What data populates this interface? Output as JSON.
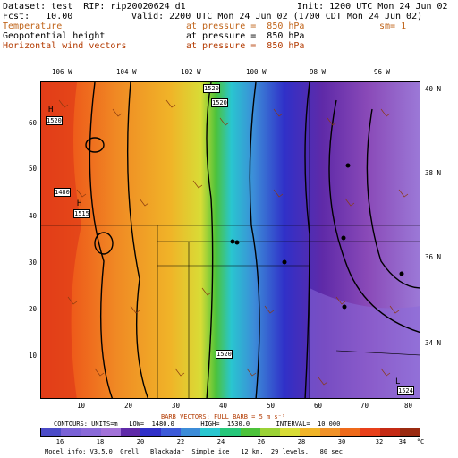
{
  "header": {
    "dataset_line": "Dataset: test  RIP: rip20020624 d1",
    "init_line": "Init: 1200 UTC Mon 24 Jun 02",
    "fcst_line": "Fcst:   10.00",
    "valid_line": "Valid: 2200 UTC Mon 24 Jun 02 (1700 CDT Mon 24 Jun 02)",
    "fields": [
      {
        "name": "Temperature",
        "level": "at pressure =  850 hPa",
        "extra": "sm= 1"
      },
      {
        "name": "Geopotential height",
        "level": "at pressure =  850 hPa",
        "extra": ""
      },
      {
        "name": "Horizontal wind vectors",
        "level": "at pressure =  850 hPa",
        "extra": ""
      }
    ]
  },
  "map": {
    "top_lon_labels": [
      "106 W",
      "104 W",
      "102 W",
      "100 W",
      "98 W",
      "96 W"
    ],
    "right_lat_labels": [
      "40 N",
      "38 N",
      "36 N",
      "34 N"
    ],
    "left_ticks": [
      "60",
      "50",
      "40",
      "30",
      "20",
      "10"
    ],
    "bottom_ticks": [
      "10",
      "20",
      "30",
      "40",
      "50",
      "60",
      "70",
      "80"
    ],
    "contour_labels": [
      "1520",
      "1520",
      "1520",
      "1480",
      "1515",
      "1520",
      "1524"
    ],
    "high_marker": "H",
    "low_marker": "L"
  },
  "footer": {
    "barb_line": "BARB VECTORS: FULL BARB = 5 m s⁻¹",
    "contours_line": "CONTOURS: UNITS=m   LOW=  1480.0       HIGH=  1530.0       INTERVAL=  10.000",
    "colorbar_labels": [
      "16",
      "18",
      "20",
      "22",
      "24",
      "26",
      "28",
      "30",
      "32",
      "34"
    ],
    "colorbar_unit": "°C",
    "colorbar_colors": [
      "#4c4cc8",
      "#7a62d6",
      "#8a6ad8",
      "#a272d8",
      "#5f2aa8",
      "#3030c8",
      "#3c5ad8",
      "#3c8cd8",
      "#29c6d0",
      "#26c77a",
      "#4cc23a",
      "#9bd236",
      "#d8dc36",
      "#f0b428",
      "#f09228",
      "#ee6a1a",
      "#e8401a",
      "#c42a14",
      "#9a2a10"
    ],
    "model_info": "Model info: V3.5.0  Grell   Blackadar  Simple ice   12 km,  29 levels,   80 sec"
  }
}
